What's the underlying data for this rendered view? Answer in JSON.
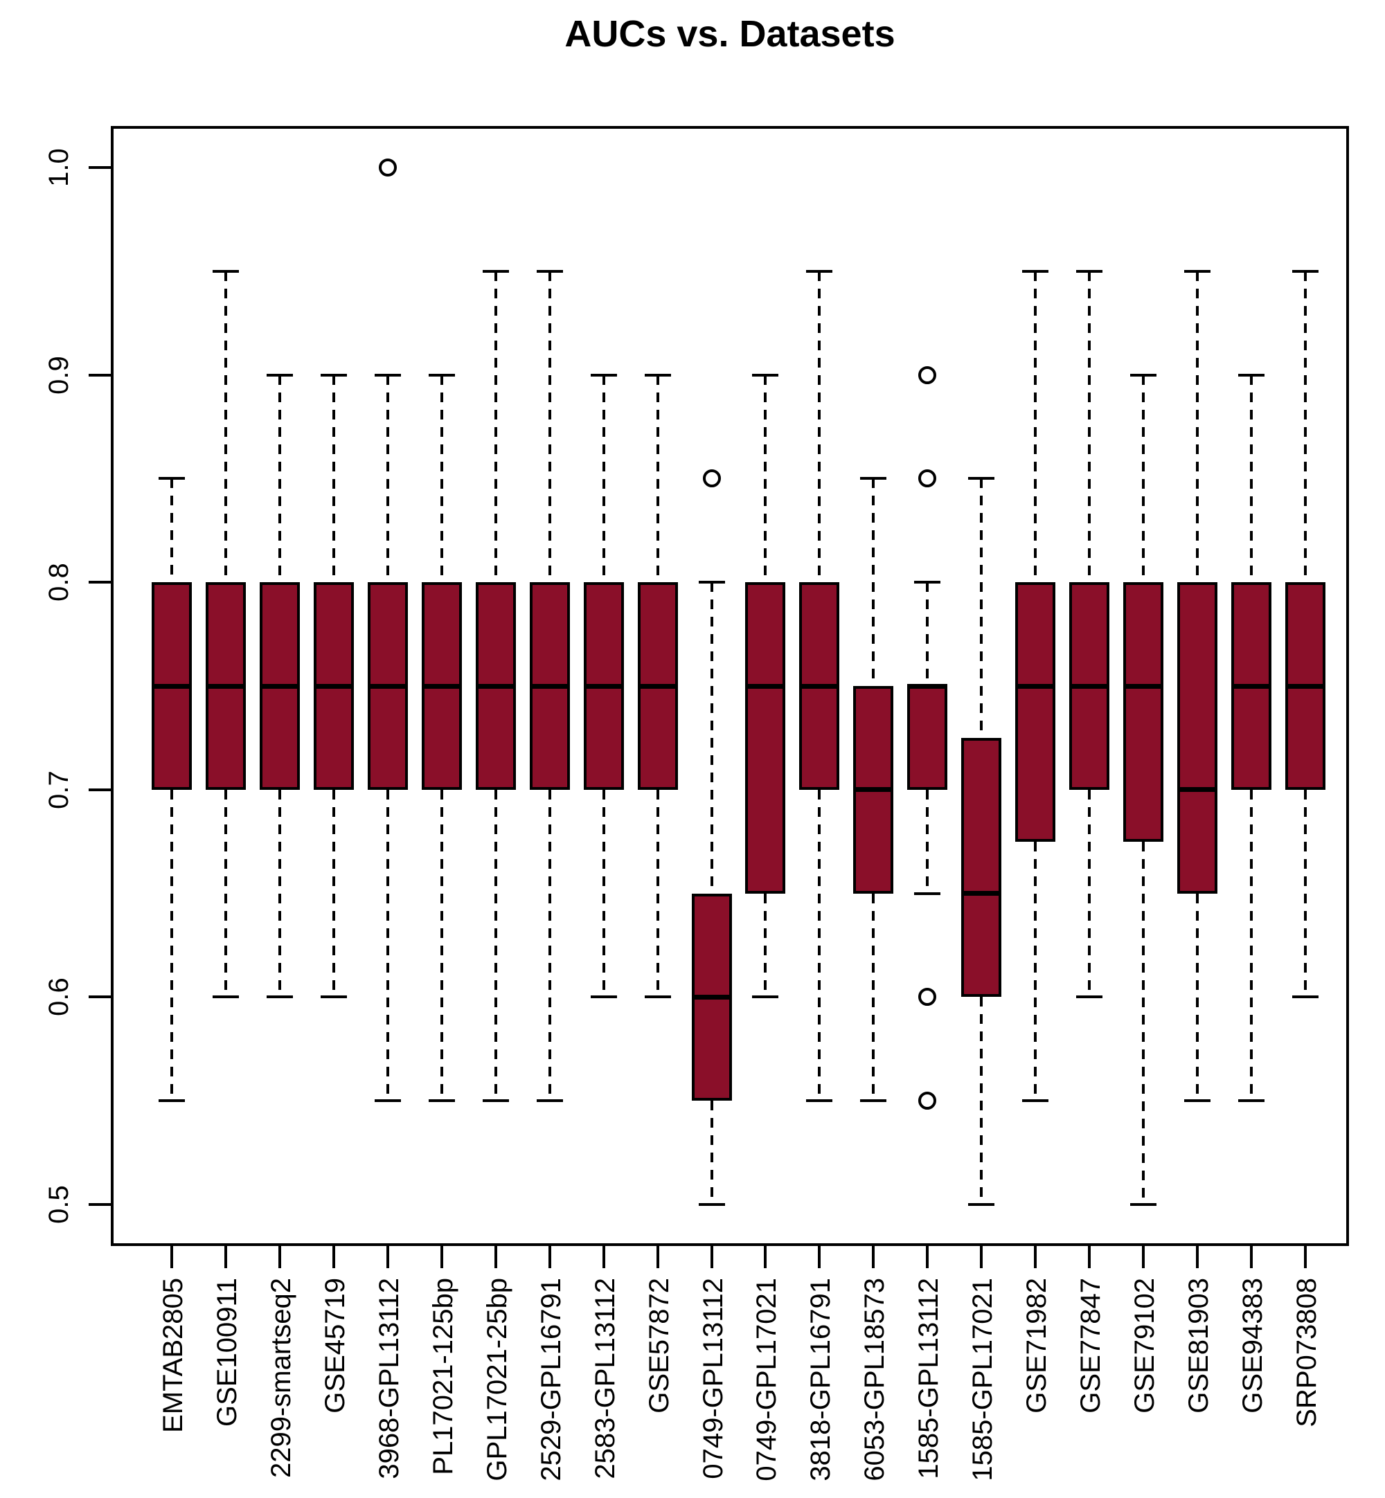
{
  "title": "AUCs vs. Datasets",
  "colors": {
    "box_fill": "#8A0F29",
    "line": "#000000",
    "background": "#FFFFFF"
  },
  "chart_data": {
    "type": "boxplot",
    "title": "AUCs vs. Datasets",
    "xlabel": "",
    "ylabel": "",
    "ylim": [
      0.5,
      1.0
    ],
    "yticks": [
      0.5,
      0.6,
      0.7,
      0.8,
      0.9,
      1.0
    ],
    "ytick_labels": [
      "0.5",
      "0.6",
      "0.7",
      "0.8",
      "0.9",
      "1.0"
    ],
    "grid": false,
    "legend": "none",
    "categories": [
      "EMTAB2805",
      "GSE100911",
      "2299-smartseq2",
      "GSE45719",
      "3968-GPL13112",
      "PL17021-125bp",
      "GPL17021-25bp",
      "2529-GPL16791",
      "2583-GPL13112",
      "GSE57872",
      "0749-GPL13112",
      "0749-GPL17021",
      "3818-GPL16791",
      "6053-GPL18573",
      "1585-GPL13112",
      "1585-GPL17021",
      "GSE71982",
      "GSE77847",
      "GSE79102",
      "GSE81903",
      "GSE94383",
      "SRP073808"
    ],
    "boxes": [
      {
        "label": "EMTAB2805",
        "whisker_low": 0.55,
        "q1": 0.7,
        "median": 0.75,
        "q3": 0.8,
        "whisker_high": 0.85,
        "outliers": []
      },
      {
        "label": "GSE100911",
        "whisker_low": 0.6,
        "q1": 0.7,
        "median": 0.75,
        "q3": 0.8,
        "whisker_high": 0.95,
        "outliers": []
      },
      {
        "label": "2299-smartseq2",
        "whisker_low": 0.6,
        "q1": 0.7,
        "median": 0.75,
        "q3": 0.8,
        "whisker_high": 0.9,
        "outliers": []
      },
      {
        "label": "GSE45719",
        "whisker_low": 0.6,
        "q1": 0.7,
        "median": 0.75,
        "q3": 0.8,
        "whisker_high": 0.9,
        "outliers": []
      },
      {
        "label": "3968-GPL13112",
        "whisker_low": 0.55,
        "q1": 0.7,
        "median": 0.75,
        "q3": 0.8,
        "whisker_high": 0.9,
        "outliers": [
          1.0
        ]
      },
      {
        "label": "PL17021-125bp",
        "whisker_low": 0.55,
        "q1": 0.7,
        "median": 0.75,
        "q3": 0.8,
        "whisker_high": 0.9,
        "outliers": []
      },
      {
        "label": "GPL17021-25bp",
        "whisker_low": 0.55,
        "q1": 0.7,
        "median": 0.75,
        "q3": 0.8,
        "whisker_high": 0.95,
        "outliers": []
      },
      {
        "label": "2529-GPL16791",
        "whisker_low": 0.55,
        "q1": 0.7,
        "median": 0.75,
        "q3": 0.8,
        "whisker_high": 0.95,
        "outliers": []
      },
      {
        "label": "2583-GPL13112",
        "whisker_low": 0.6,
        "q1": 0.7,
        "median": 0.75,
        "q3": 0.8,
        "whisker_high": 0.9,
        "outliers": []
      },
      {
        "label": "GSE57872",
        "whisker_low": 0.6,
        "q1": 0.7,
        "median": 0.75,
        "q3": 0.8,
        "whisker_high": 0.9,
        "outliers": []
      },
      {
        "label": "0749-GPL13112",
        "whisker_low": 0.5,
        "q1": 0.55,
        "median": 0.6,
        "q3": 0.65,
        "whisker_high": 0.8,
        "outliers": [
          0.85
        ]
      },
      {
        "label": "0749-GPL17021",
        "whisker_low": 0.6,
        "q1": 0.65,
        "median": 0.75,
        "q3": 0.8,
        "whisker_high": 0.9,
        "outliers": []
      },
      {
        "label": "3818-GPL16791",
        "whisker_low": 0.55,
        "q1": 0.7,
        "median": 0.75,
        "q3": 0.8,
        "whisker_high": 0.95,
        "outliers": []
      },
      {
        "label": "6053-GPL18573",
        "whisker_low": 0.55,
        "q1": 0.65,
        "median": 0.7,
        "q3": 0.75,
        "whisker_high": 0.85,
        "outliers": []
      },
      {
        "label": "1585-GPL13112",
        "whisker_low": 0.65,
        "q1": 0.7,
        "median": 0.75,
        "q3": 0.75,
        "whisker_high": 0.8,
        "outliers": [
          0.9,
          0.85,
          0.6,
          0.55
        ]
      },
      {
        "label": "1585-GPL17021",
        "whisker_low": 0.5,
        "q1": 0.6,
        "median": 0.65,
        "q3": 0.725,
        "whisker_high": 0.85,
        "outliers": []
      },
      {
        "label": "GSE71982",
        "whisker_low": 0.55,
        "q1": 0.675,
        "median": 0.75,
        "q3": 0.8,
        "whisker_high": 0.95,
        "outliers": []
      },
      {
        "label": "GSE77847",
        "whisker_low": 0.6,
        "q1": 0.7,
        "median": 0.75,
        "q3": 0.8,
        "whisker_high": 0.95,
        "outliers": []
      },
      {
        "label": "GSE79102",
        "whisker_low": 0.5,
        "q1": 0.675,
        "median": 0.75,
        "q3": 0.8,
        "whisker_high": 0.9,
        "outliers": []
      },
      {
        "label": "GSE81903",
        "whisker_low": 0.55,
        "q1": 0.65,
        "median": 0.7,
        "q3": 0.8,
        "whisker_high": 0.95,
        "outliers": []
      },
      {
        "label": "GSE94383",
        "whisker_low": 0.55,
        "q1": 0.7,
        "median": 0.75,
        "q3": 0.8,
        "whisker_high": 0.9,
        "outliers": []
      },
      {
        "label": "SRP073808",
        "whisker_low": 0.6,
        "q1": 0.7,
        "median": 0.75,
        "q3": 0.8,
        "whisker_high": 0.95,
        "outliers": []
      }
    ]
  }
}
